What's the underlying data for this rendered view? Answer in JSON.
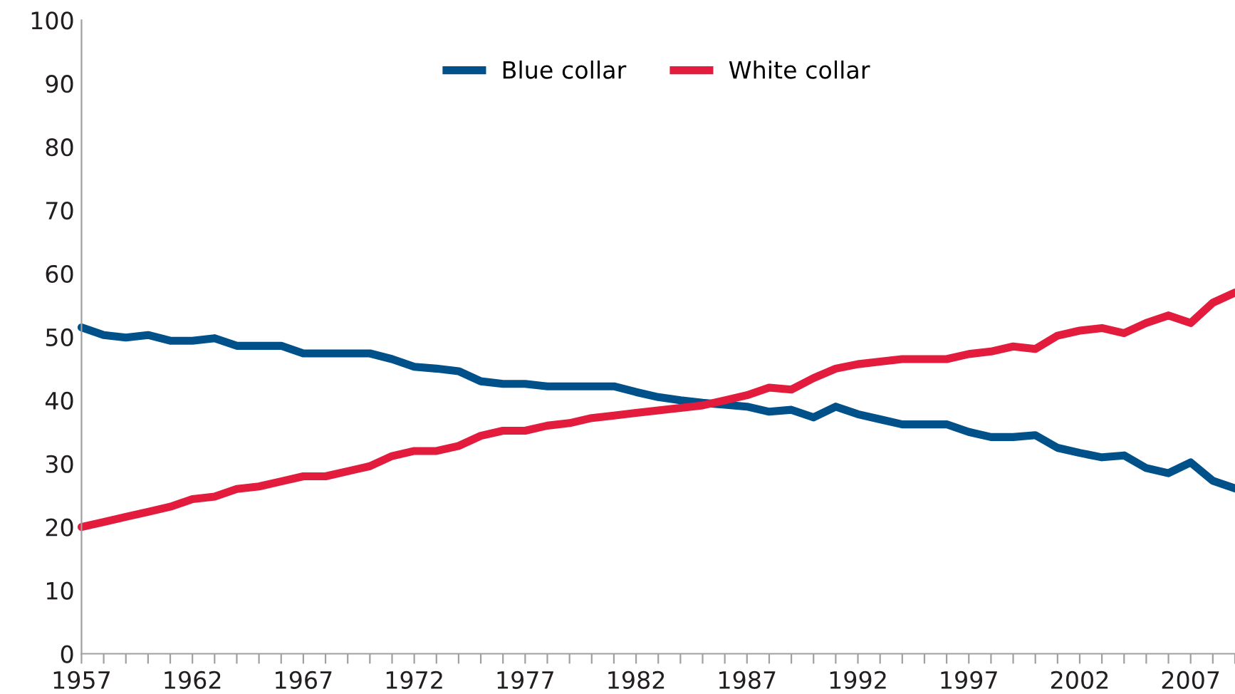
{
  "chart_data": {
    "type": "line",
    "x": [
      1957,
      1958,
      1959,
      1960,
      1961,
      1962,
      1963,
      1964,
      1965,
      1966,
      1967,
      1968,
      1969,
      1970,
      1971,
      1972,
      1973,
      1974,
      1975,
      1976,
      1977,
      1978,
      1979,
      1980,
      1981,
      1982,
      1983,
      1984,
      1985,
      1986,
      1987,
      1988,
      1989,
      1990,
      1991,
      1992,
      1993,
      1994,
      1995,
      1996,
      1997,
      1998,
      1999,
      2000,
      2001,
      2002,
      2003,
      2004,
      2005,
      2006,
      2007,
      2008,
      2009
    ],
    "series": [
      {
        "name": "Blue collar",
        "color": "#00518a",
        "values": [
          51.5,
          50.3,
          49.9,
          50.3,
          49.4,
          49.4,
          49.8,
          48.6,
          48.6,
          48.6,
          47.4,
          47.4,
          47.4,
          47.4,
          46.5,
          45.3,
          45,
          44.6,
          43,
          42.6,
          42.6,
          42.2,
          42.2,
          42.2,
          42.2,
          41.3,
          40.5,
          40,
          39.6,
          39.3,
          39,
          38.2,
          38.5,
          37.3,
          39,
          37.8,
          37,
          36.2,
          36.2,
          36.2,
          35,
          34.2,
          34.2,
          34.5,
          32.5,
          31.7,
          31,
          31.3,
          29.3,
          28.5,
          30.2,
          27.3,
          26.1
        ]
      },
      {
        "name": "White collar",
        "color": "#e31b3c",
        "values": [
          20,
          20.8,
          21.6,
          22.4,
          23.2,
          24.4,
          24.8,
          26,
          26.4,
          27.2,
          28,
          28,
          28.8,
          29.6,
          31.2,
          32,
          32,
          32.8,
          34.4,
          35.2,
          35.2,
          36,
          36.4,
          37.2,
          37.6,
          38,
          38.4,
          38.8,
          39.2,
          40,
          40.8,
          42,
          41.7,
          43.5,
          45,
          45.7,
          46.1,
          46.5,
          46.5,
          46.5,
          47.3,
          47.7,
          48.5,
          48.1,
          50.2,
          51,
          51.4,
          50.6,
          52.2,
          53.4,
          52.2,
          55.4,
          57
        ]
      }
    ],
    "xlim": [
      1957,
      2009
    ],
    "xticks": [
      1957,
      {
        "value": 1958,
        "label": null
      },
      {
        "value": 1959,
        "label": null
      },
      {
        "value": 1960,
        "label": null
      },
      {
        "value": 1961,
        "label": null
      },
      1962,
      {
        "value": 1963,
        "label": null
      },
      {
        "value": 1964,
        "label": null
      },
      {
        "value": 1965,
        "label": null
      },
      {
        "value": 1966,
        "label": null
      },
      1967,
      {
        "value": 1968,
        "label": null
      },
      {
        "value": 1969,
        "label": null
      },
      {
        "value": 1970,
        "label": null
      },
      {
        "value": 1971,
        "label": null
      },
      1972,
      {
        "value": 1973,
        "label": null
      },
      {
        "value": 1974,
        "label": null
      },
      {
        "value": 1975,
        "label": null
      },
      {
        "value": 1976,
        "label": null
      },
      1977,
      {
        "value": 1978,
        "label": null
      },
      {
        "value": 1979,
        "label": null
      },
      {
        "value": 1980,
        "label": null
      },
      {
        "value": 1981,
        "label": null
      },
      1982,
      {
        "value": 1983,
        "label": null
      },
      {
        "value": 1984,
        "label": null
      },
      {
        "value": 1985,
        "label": null
      },
      {
        "value": 1986,
        "label": null
      },
      1987,
      {
        "value": 1988,
        "label": null
      },
      {
        "value": 1989,
        "label": null
      },
      {
        "value": 1990,
        "label": null
      },
      {
        "value": 1991,
        "label": null
      },
      1992,
      {
        "value": 1993,
        "label": null
      },
      {
        "value": 1994,
        "label": null
      },
      {
        "value": 1995,
        "label": null
      },
      {
        "value": 1996,
        "label": null
      },
      1997,
      {
        "value": 1998,
        "label": null
      },
      {
        "value": 1999,
        "label": null
      },
      {
        "value": 2000,
        "label": null
      },
      {
        "value": 2001,
        "label": null
      },
      2002,
      {
        "value": 2003,
        "label": null
      },
      {
        "value": 2004,
        "label": null
      },
      {
        "value": 2005,
        "label": null
      },
      {
        "value": 2006,
        "label": null
      },
      2007,
      {
        "value": 2008,
        "label": null
      },
      {
        "value": 2009,
        "label": null
      }
    ],
    "ylim": [
      0,
      100
    ],
    "yticks": [
      0,
      10,
      20,
      30,
      40,
      50,
      60,
      70,
      80,
      90,
      100
    ],
    "legend": "top",
    "grid": false,
    "marker": "none",
    "line_style": "solid"
  }
}
